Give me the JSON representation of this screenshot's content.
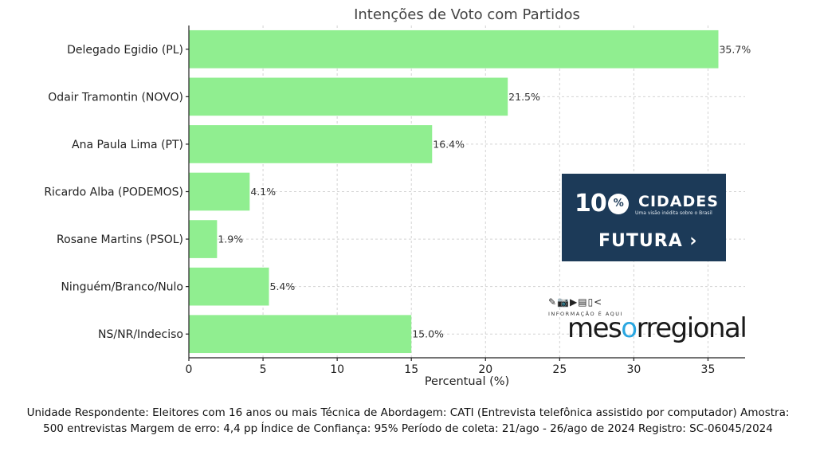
{
  "chart_data": {
    "type": "bar",
    "orientation": "horizontal",
    "title": "Intenções de Voto com Partidos",
    "xlabel": "Percentual (%)",
    "ylabel": "",
    "categories": [
      "Delegado Egidio (PL)",
      "Odair Tramontin (NOVO)",
      "Ana Paula Lima (PT)",
      "Ricardo Alba (PODEMOS)",
      "Rosane Martins (PSOL)",
      "Ninguém/Branco/Nulo",
      "NS/NR/Indeciso"
    ],
    "values": [
      35.7,
      21.5,
      16.4,
      4.1,
      1.9,
      5.4,
      15.0
    ],
    "data_labels": [
      "35.7%",
      "21.5%",
      "16.4%",
      "4.1%",
      "1.9%",
      "5.4%",
      "15.0%"
    ],
    "xticks": [
      "0",
      "5",
      "10",
      "15",
      "20",
      "25",
      "30",
      "35"
    ],
    "xlim": [
      0,
      37.5
    ],
    "grid": true,
    "bar_color": "#90ee90"
  },
  "logos": {
    "cem_cidades": {
      "number": "10",
      "pct": "%",
      "word": "CIDADES",
      "tagline": "Uma visão inédita sobre o Brasil",
      "brand": "FUTURA",
      "bg_color": "#1c3a58"
    },
    "mesoregional": {
      "icons": "✎📷▶▤▯<",
      "tagline": "INFORMAÇÃO É AQUI",
      "word_pre": "mes",
      "word_o": "o",
      "word_post": "rregional",
      "accent": "#2aa6e0"
    }
  },
  "footnote": {
    "line1": "Unidade Respondente: Eleitores com 16 anos ou mais Técnica de Abordagem: CATI (Entrevista telefônica assistido por computador) Amostra:",
    "line2": "500 entrevistas Margem de erro: 4,4 pp Índice de Confiança: 95% Período de coleta: 21/ago - 26/ago de 2024 Registro: SC-06045/2024"
  }
}
